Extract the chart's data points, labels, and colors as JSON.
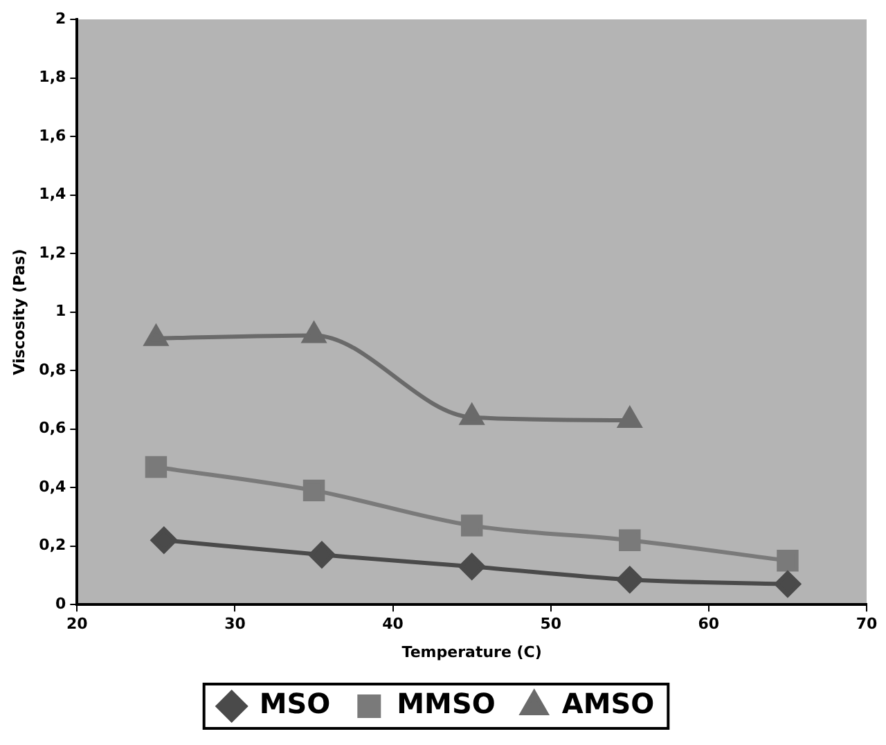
{
  "chart_data": {
    "type": "line",
    "xlabel": "Temperature (C)",
    "ylabel": "Viscosity (Pas)",
    "xlim": [
      20,
      70
    ],
    "xticks": [
      20,
      30,
      40,
      50,
      60,
      70
    ],
    "ylim": [
      0,
      2
    ],
    "yticks": [
      0,
      {
        "value": 0.2,
        "label": "0,2"
      },
      {
        "value": 0.4,
        "label": "0,4"
      },
      {
        "value": 0.6,
        "label": "0,6"
      },
      {
        "value": 0.8,
        "label": "0,8"
      },
      1,
      {
        "value": 1.2,
        "label": "1,2"
      },
      {
        "value": 1.4,
        "label": "1,4"
      },
      {
        "value": 1.6,
        "label": "1,6"
      },
      {
        "value": 1.8,
        "label": "1,8"
      },
      2
    ],
    "grid": false,
    "legend": "bottom",
    "series": [
      {
        "name": "MSO",
        "color": "#4a4a4a",
        "marker": "diamond",
        "x": [
          25.5,
          35.5,
          45,
          55,
          65
        ],
        "values": [
          0.22,
          0.17,
          0.13,
          0.085,
          0.07
        ]
      },
      {
        "name": "MMSO",
        "color": "#7a7a7a",
        "marker": "square",
        "x": [
          25,
          35,
          45,
          55,
          65
        ],
        "values": [
          0.47,
          0.39,
          0.27,
          0.22,
          0.15
        ]
      },
      {
        "name": "AMSO",
        "color": "#6a6a6a",
        "marker": "triangle",
        "x": [
          25,
          35,
          45,
          55
        ],
        "values": [
          0.91,
          0.92,
          0.64,
          0.63
        ]
      }
    ]
  }
}
